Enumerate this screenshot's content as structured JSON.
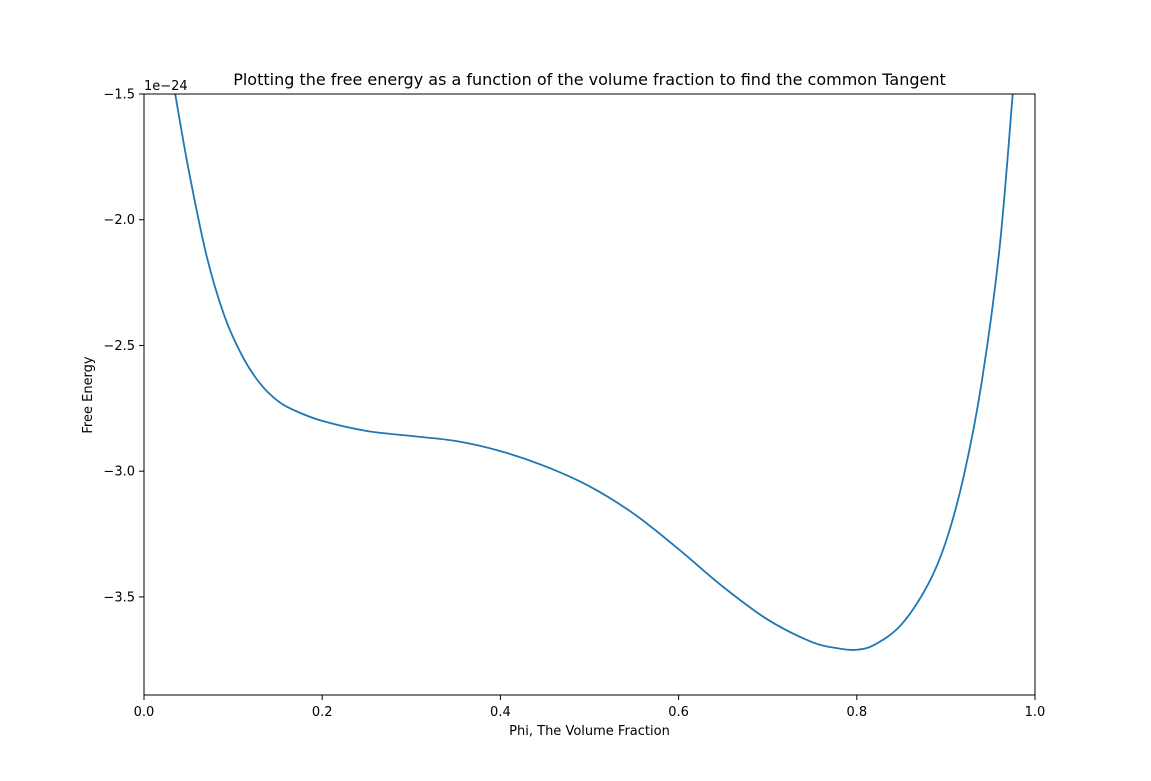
{
  "chart_data": {
    "type": "line",
    "title": "Plotting the free energy as a function of the volume fraction to find the common Tangent",
    "xlabel": "Phi, The Volume Fraction",
    "ylabel": "Free Energy",
    "y_offset_label": "1e−24",
    "xlim": [
      0.0,
      1.0
    ],
    "ylim": [
      -3.89,
      -1.5
    ],
    "x_ticks": [
      0.0,
      0.2,
      0.4,
      0.6,
      0.8,
      1.0
    ],
    "x_tick_labels": [
      "0.0",
      "0.2",
      "0.4",
      "0.6",
      "0.8",
      "1.0"
    ],
    "y_ticks": [
      -1.5,
      -2.0,
      -2.5,
      -3.0,
      -3.5
    ],
    "y_tick_labels": [
      "−1.5",
      "−2.0",
      "−2.5",
      "−3.0",
      "−3.5"
    ],
    "grid": false,
    "series": [
      {
        "color": "#1f77b4",
        "x": [
          0.035,
          0.05,
          0.07,
          0.09,
          0.11,
          0.13,
          0.15,
          0.17,
          0.2,
          0.25,
          0.3,
          0.35,
          0.4,
          0.45,
          0.5,
          0.55,
          0.6,
          0.65,
          0.7,
          0.75,
          0.78,
          0.8,
          0.82,
          0.85,
          0.88,
          0.9,
          0.92,
          0.94,
          0.96,
          0.975
        ],
        "y": [
          -1.5,
          -1.8,
          -2.14,
          -2.38,
          -2.54,
          -2.65,
          -2.72,
          -2.76,
          -2.8,
          -2.84,
          -2.86,
          -2.88,
          -2.92,
          -2.98,
          -3.06,
          -3.17,
          -3.31,
          -3.46,
          -3.59,
          -3.68,
          -3.705,
          -3.71,
          -3.69,
          -3.61,
          -3.45,
          -3.28,
          -3.02,
          -2.65,
          -2.12,
          -1.5
        ]
      }
    ]
  }
}
